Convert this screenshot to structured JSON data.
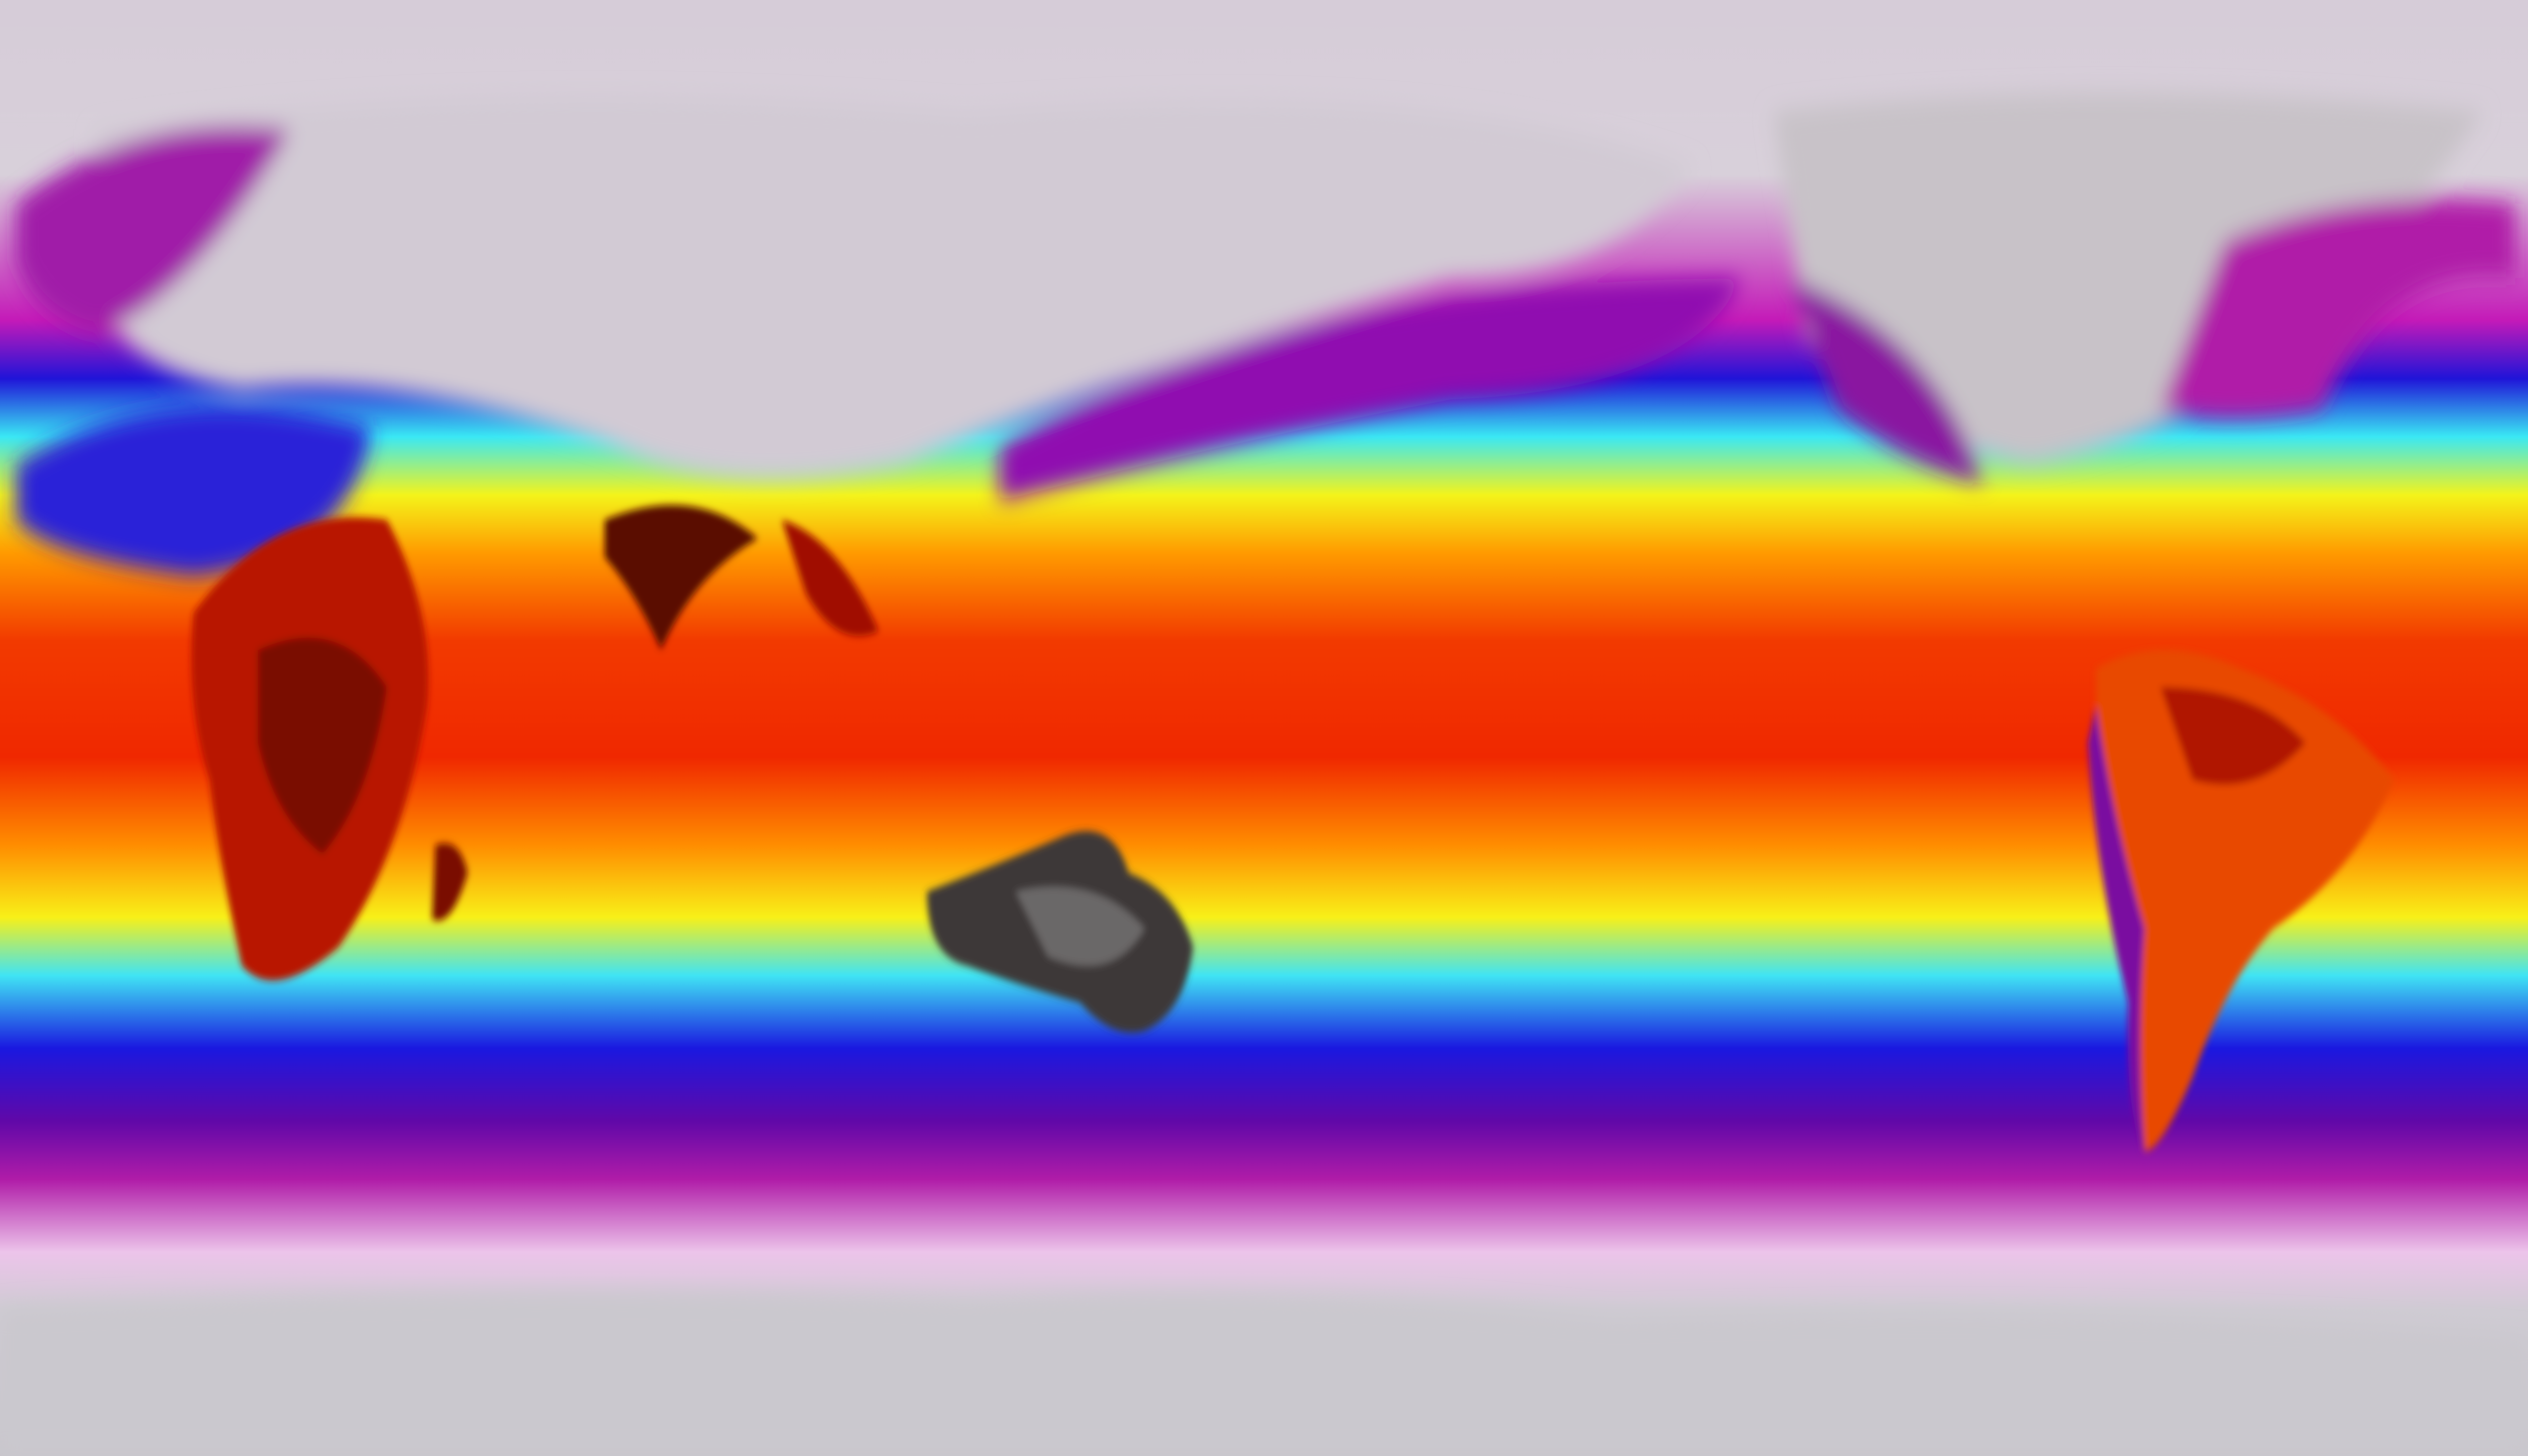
{
  "map": {
    "projection": "equirectangular",
    "view": "global",
    "colors": {
      "polar_gray": "#cfcbd3",
      "pink": "#e8b6e6",
      "magenta": "#b21aa8",
      "purple": "#6a0aa8",
      "blue": "#1a14e0",
      "cyan": "#39e8f4",
      "yellow": "#f4f41a",
      "orange": "#ff8a00",
      "red": "#f02a00",
      "dark_red": "#8a0a00",
      "land_dark": "#3a3838",
      "land_gray": "#b8b4b8"
    }
  }
}
